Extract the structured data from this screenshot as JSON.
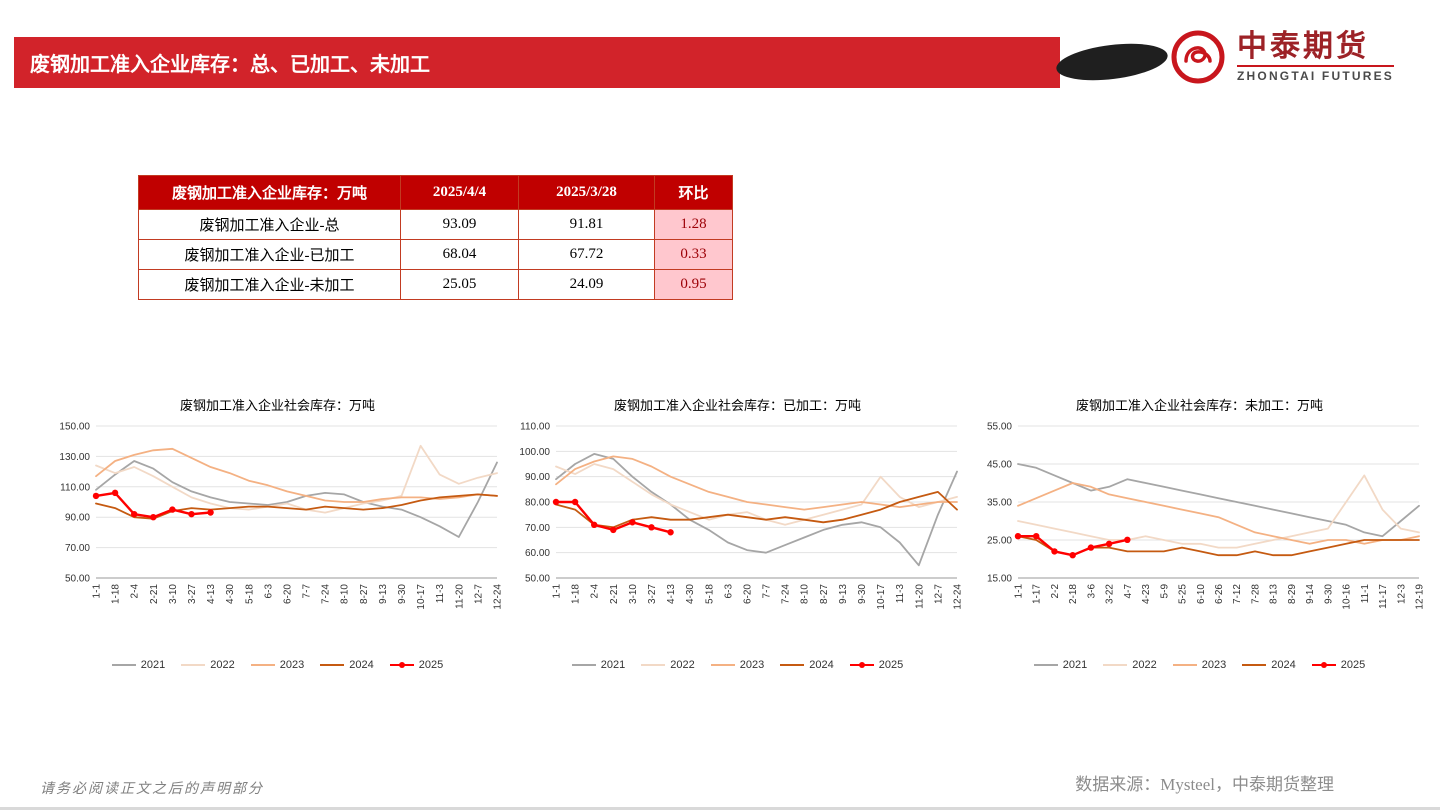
{
  "banner": {
    "title": "废钢加工准入企业库存：总、已加工、未加工"
  },
  "logo": {
    "name_cn": "中泰期货",
    "name_en": "ZHONGTAI FUTURES"
  },
  "table": {
    "headers": [
      "废钢加工准入企业库存：万吨",
      "2025/4/4",
      "2025/3/28",
      "环比"
    ],
    "rows": [
      {
        "label": "废钢加工准入企业-总",
        "v1": "93.09",
        "v2": "91.81",
        "chg": "1.28"
      },
      {
        "label": "废钢加工准入企业-已加工",
        "v1": "68.04",
        "v2": "67.72",
        "chg": "0.33"
      },
      {
        "label": "废钢加工准入企业-未加工",
        "v1": "25.05",
        "v2": "24.09",
        "chg": "0.95"
      }
    ]
  },
  "chart_data": [
    {
      "type": "line",
      "title": "废钢加工准入企业社会库存：万吨",
      "ylim": [
        50,
        150
      ],
      "yticks": [
        50,
        70,
        90,
        110,
        130,
        150
      ],
      "categories": [
        "1-1",
        "1-18",
        "2-4",
        "2-21",
        "3-10",
        "3-27",
        "4-13",
        "4-30",
        "5-18",
        "6-3",
        "6-20",
        "7-7",
        "7-24",
        "8-10",
        "8-27",
        "9-13",
        "9-30",
        "10-17",
        "11-3",
        "11-20",
        "12-7",
        "12-24"
      ],
      "series": [
        {
          "name": "2021",
          "color": "#a6a6a6",
          "values": [
            108,
            118,
            127,
            122,
            113,
            107,
            103,
            100,
            99,
            98,
            100,
            104,
            106,
            105,
            100,
            97,
            95,
            90,
            84,
            77,
            100,
            126
          ]
        },
        {
          "name": "2022",
          "color": "#f2d9c6",
          "values": [
            124,
            119,
            123,
            117,
            110,
            103,
            99,
            96,
            95,
            97,
            99,
            95,
            93,
            96,
            99,
            101,
            104,
            137,
            118,
            112,
            116,
            119
          ]
        },
        {
          "name": "2023",
          "color": "#f4b183",
          "values": [
            117,
            127,
            131,
            134,
            135,
            129,
            123,
            119,
            114,
            111,
            107,
            104,
            101,
            100,
            100,
            102,
            103,
            103,
            102,
            103,
            105,
            104
          ]
        },
        {
          "name": "2024",
          "color": "#c55a11",
          "values": [
            99,
            96,
            90,
            89,
            94,
            96,
            95,
            96,
            97,
            97,
            96,
            95,
            97,
            96,
            95,
            96,
            98,
            101,
            103,
            104,
            105,
            104
          ]
        },
        {
          "name": "2025",
          "color": "#ff0000",
          "marker": true,
          "values": [
            104,
            106,
            92,
            90,
            95,
            92,
            93.09
          ]
        }
      ]
    },
    {
      "type": "line",
      "title": "废钢加工准入企业社会库存：已加工：万吨",
      "ylim": [
        50,
        110
      ],
      "yticks": [
        50,
        60,
        70,
        80,
        90,
        100,
        110
      ],
      "categories": [
        "1-1",
        "1-18",
        "2-4",
        "2-21",
        "3-10",
        "3-27",
        "4-13",
        "4-30",
        "5-18",
        "6-3",
        "6-20",
        "7-7",
        "7-24",
        "8-10",
        "8-27",
        "9-13",
        "9-30",
        "10-17",
        "11-3",
        "11-20",
        "12-7",
        "12-24"
      ],
      "series": [
        {
          "name": "2021",
          "color": "#a6a6a6",
          "values": [
            89,
            95,
            99,
            97,
            90,
            84,
            79,
            73,
            69,
            64,
            61,
            60,
            63,
            66,
            69,
            71,
            72,
            70,
            64,
            55,
            75,
            92
          ]
        },
        {
          "name": "2022",
          "color": "#f2d9c6",
          "values": [
            94,
            91,
            95,
            93,
            88,
            83,
            79,
            76,
            73,
            75,
            76,
            73,
            71,
            73,
            75,
            77,
            79,
            90,
            82,
            78,
            80,
            82
          ]
        },
        {
          "name": "2023",
          "color": "#f4b183",
          "values": [
            87,
            93,
            96,
            98,
            97,
            94,
            90,
            87,
            84,
            82,
            80,
            79,
            78,
            77,
            78,
            79,
            80,
            79,
            78,
            79,
            80,
            80
          ]
        },
        {
          "name": "2024",
          "color": "#c55a11",
          "values": [
            79,
            77,
            71,
            70,
            73,
            74,
            73,
            73,
            74,
            75,
            74,
            73,
            74,
            73,
            72,
            73,
            75,
            77,
            80,
            82,
            84,
            77
          ]
        },
        {
          "name": "2025",
          "color": "#ff0000",
          "marker": true,
          "values": [
            80,
            80,
            71,
            69,
            72,
            70,
            68.04
          ]
        }
      ]
    },
    {
      "type": "line",
      "title": "废钢加工准入企业社会库存：未加工：万吨",
      "ylim": [
        15,
        55
      ],
      "yticks": [
        15,
        25,
        35,
        45,
        55
      ],
      "categories": [
        "1-1",
        "1-17",
        "2-2",
        "2-18",
        "3-6",
        "3-22",
        "4-7",
        "4-23",
        "5-9",
        "5-25",
        "6-10",
        "6-26",
        "7-12",
        "7-28",
        "8-13",
        "8-29",
        "9-14",
        "9-30",
        "10-16",
        "11-1",
        "11-17",
        "12-3",
        "12-19"
      ],
      "series": [
        {
          "name": "2021",
          "color": "#a6a6a6",
          "values": [
            45,
            44,
            42,
            40,
            38,
            39,
            41,
            40,
            39,
            38,
            37,
            36,
            35,
            34,
            33,
            32,
            31,
            30,
            29,
            27,
            26,
            30,
            34
          ]
        },
        {
          "name": "2022",
          "color": "#f2d9c6",
          "values": [
            30,
            29,
            28,
            27,
            26,
            25,
            25,
            26,
            25,
            24,
            24,
            23,
            23,
            24,
            25,
            26,
            27,
            28,
            35,
            42,
            33,
            28,
            27
          ]
        },
        {
          "name": "2023",
          "color": "#f4b183",
          "values": [
            34,
            36,
            38,
            40,
            39,
            37,
            36,
            35,
            34,
            33,
            32,
            31,
            29,
            27,
            26,
            25,
            24,
            25,
            25,
            24,
            25,
            25,
            26
          ]
        },
        {
          "name": "2024",
          "color": "#c55a11",
          "values": [
            26,
            25,
            22,
            21,
            23,
            23,
            22,
            22,
            22,
            23,
            22,
            21,
            21,
            22,
            21,
            21,
            22,
            23,
            24,
            25,
            25,
            25,
            25
          ]
        },
        {
          "name": "2025",
          "color": "#ff0000",
          "marker": true,
          "values": [
            26,
            26,
            22,
            21,
            23,
            24,
            25.05
          ]
        }
      ]
    }
  ],
  "footer": {
    "disclaimer": "请务必阅读正文之后的声明部分",
    "source": "数据来源：Mysteel，中泰期货整理"
  }
}
